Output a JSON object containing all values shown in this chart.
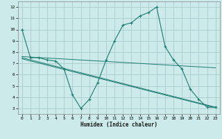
{
  "title": "",
  "xlabel": "Humidex (Indice chaleur)",
  "bg_color": "#cceaea",
  "grid_color": "#aacccc",
  "line_color": "#1a7a6e",
  "xlim": [
    -0.5,
    23.5
  ],
  "ylim": [
    2.5,
    12.5
  ],
  "yticks": [
    3,
    4,
    5,
    6,
    7,
    8,
    9,
    10,
    11,
    12
  ],
  "xticks": [
    0,
    1,
    2,
    3,
    4,
    5,
    6,
    7,
    8,
    9,
    10,
    11,
    12,
    13,
    14,
    15,
    16,
    17,
    18,
    19,
    20,
    21,
    22,
    23
  ],
  "lines": [
    {
      "x": [
        0,
        1,
        2,
        3,
        4,
        5,
        6,
        7,
        8,
        9,
        10,
        11,
        12,
        13,
        14,
        15,
        16,
        17,
        18,
        19,
        20,
        21,
        22,
        23
      ],
      "y": [
        10,
        7.5,
        7.5,
        7.3,
        7.2,
        6.5,
        4.2,
        3.0,
        3.8,
        5.3,
        7.3,
        9.0,
        10.4,
        10.6,
        11.2,
        11.5,
        12.0,
        8.5,
        7.3,
        6.5,
        4.7,
        3.8,
        3.1,
        3.1
      ],
      "has_marker": true
    },
    {
      "x": [
        0,
        23
      ],
      "y": [
        7.6,
        6.6
      ],
      "has_marker": false
    },
    {
      "x": [
        0,
        23
      ],
      "y": [
        7.5,
        3.1
      ],
      "has_marker": false
    },
    {
      "x": [
        0,
        23
      ],
      "y": [
        7.4,
        3.05
      ],
      "has_marker": false
    }
  ]
}
